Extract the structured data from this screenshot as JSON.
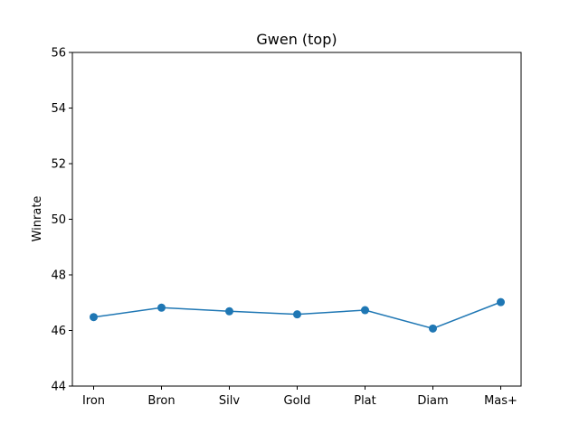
{
  "chart_data": {
    "type": "line",
    "title": "Gwen (top)",
    "xlabel": "",
    "ylabel": "Winrate",
    "categories": [
      "Iron",
      "Bron",
      "Silv",
      "Gold",
      "Plat",
      "Diam",
      "Mas+"
    ],
    "series": [
      {
        "values": [
          46.48,
          46.82,
          46.69,
          46.58,
          46.73,
          46.07,
          47.02
        ],
        "color": "#1f77b4"
      }
    ],
    "ylim": [
      44,
      56
    ],
    "yticks": [
      44,
      46,
      48,
      50,
      52,
      54,
      56
    ],
    "grid": false,
    "legend": "none"
  }
}
